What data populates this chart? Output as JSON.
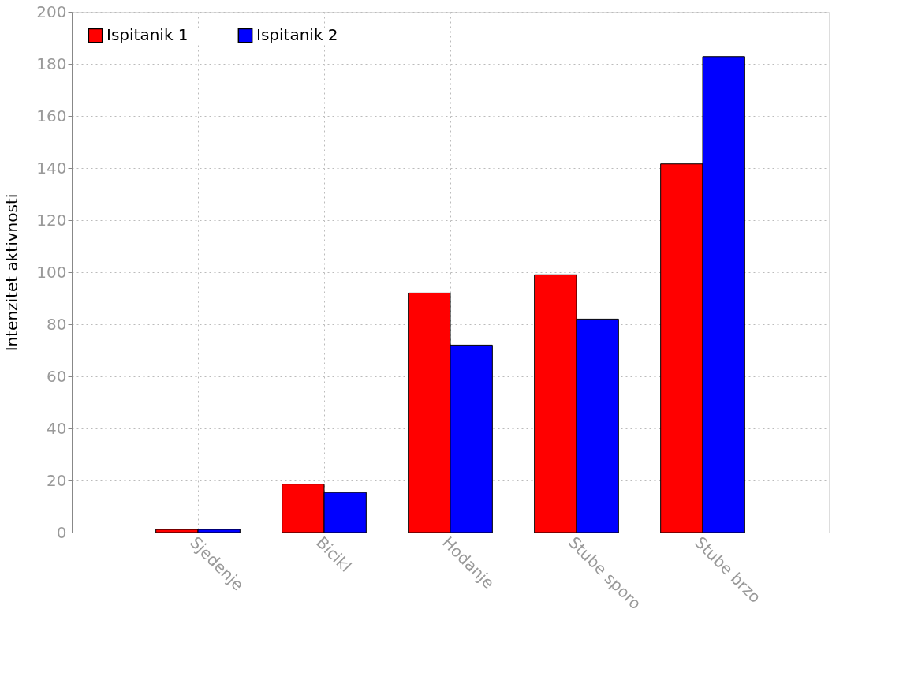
{
  "chart_data": {
    "type": "bar",
    "ylabel": "Intenzitet aktivnosti",
    "categories": [
      "Sjedenje",
      "Bicikl",
      "Hodanje",
      "Stube sporo",
      "Stube brzo"
    ],
    "series": [
      {
        "name": "Ispitanik 1",
        "color": "#ff0000",
        "values": [
          1.2,
          18.6,
          92,
          99,
          141.6
        ]
      },
      {
        "name": "Ispitanik 2",
        "color": "#0000ff",
        "values": [
          1.2,
          15.4,
          72,
          82,
          182.8
        ]
      }
    ],
    "ylim": [
      0,
      200
    ],
    "yticks": [
      0,
      20,
      40,
      60,
      80,
      100,
      120,
      140,
      160,
      180,
      200
    ],
    "grid": true,
    "legend": "top left"
  }
}
